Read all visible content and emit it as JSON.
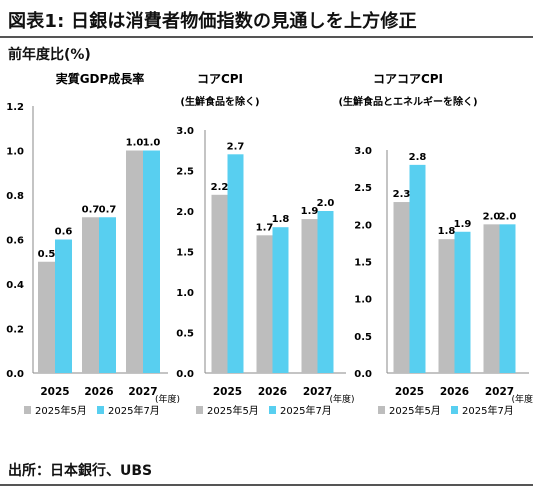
{
  "title": "図表1: 日銀は消費者物価指数の見通しを上方修正",
  "subtitle": "前年度比(%)",
  "source": "出所：日本銀行、UBS",
  "colors": {
    "may": "#bdbdbd",
    "july": "#58cff0",
    "axis": "#888888"
  },
  "chart_data": [
    {
      "type": "bar",
      "title": "実質GDP成長率",
      "subtitle": "",
      "categories": [
        "2025",
        "2026",
        "2027"
      ],
      "x_unit": "(年度)",
      "ylim": [
        0,
        1.2
      ],
      "yticks": [
        "1.2",
        "1.0",
        "0.8",
        "0.6",
        "0.4",
        "0.2",
        "0.0"
      ],
      "series": [
        {
          "name": "2025年5月",
          "values": [
            0.5,
            0.7,
            1.0
          ],
          "labels": [
            "0.5",
            "0.7",
            "1.0"
          ]
        },
        {
          "name": "2025年7月",
          "values": [
            0.6,
            0.7,
            1.0
          ],
          "labels": [
            "0.6",
            "0.7",
            "1.0"
          ]
        }
      ],
      "legend": "bottom"
    },
    {
      "type": "bar",
      "title": "コアCPI",
      "subtitle": "(生鮮食品を除く)",
      "categories": [
        "2025",
        "2026",
        "2027"
      ],
      "x_unit": "(年度)",
      "ylim": [
        0,
        3.0
      ],
      "yticks": [
        "3.0",
        "2.5",
        "2.0",
        "1.5",
        "1.0",
        "0.5",
        "0.0"
      ],
      "series": [
        {
          "name": "2025年5月",
          "values": [
            2.2,
            1.7,
            1.9
          ],
          "labels": [
            "2.2",
            "1.7",
            "1.9"
          ]
        },
        {
          "name": "2025年7月",
          "values": [
            2.7,
            1.8,
            2.0
          ],
          "labels": [
            "2.7",
            "1.8",
            "2.0"
          ]
        }
      ],
      "legend": "bottom"
    },
    {
      "type": "bar",
      "title": "コアコアCPI",
      "subtitle": "(生鮮食品とエネルギーを除く)",
      "categories": [
        "2025",
        "2026",
        "2027"
      ],
      "x_unit": "(年度)",
      "ylim": [
        0,
        3.0
      ],
      "yticks": [
        "3.0",
        "2.5",
        "2.0",
        "1.5",
        "1.0",
        "0.5",
        "0.0"
      ],
      "series": [
        {
          "name": "2025年5月",
          "values": [
            2.3,
            1.8,
            2.0
          ],
          "labels": [
            "2.3",
            "1.8",
            "2.0"
          ]
        },
        {
          "name": "2025年7月",
          "values": [
            2.8,
            1.9,
            2.0
          ],
          "labels": [
            "2.8",
            "1.9",
            "2.0"
          ]
        }
      ],
      "legend": "bottom"
    }
  ]
}
